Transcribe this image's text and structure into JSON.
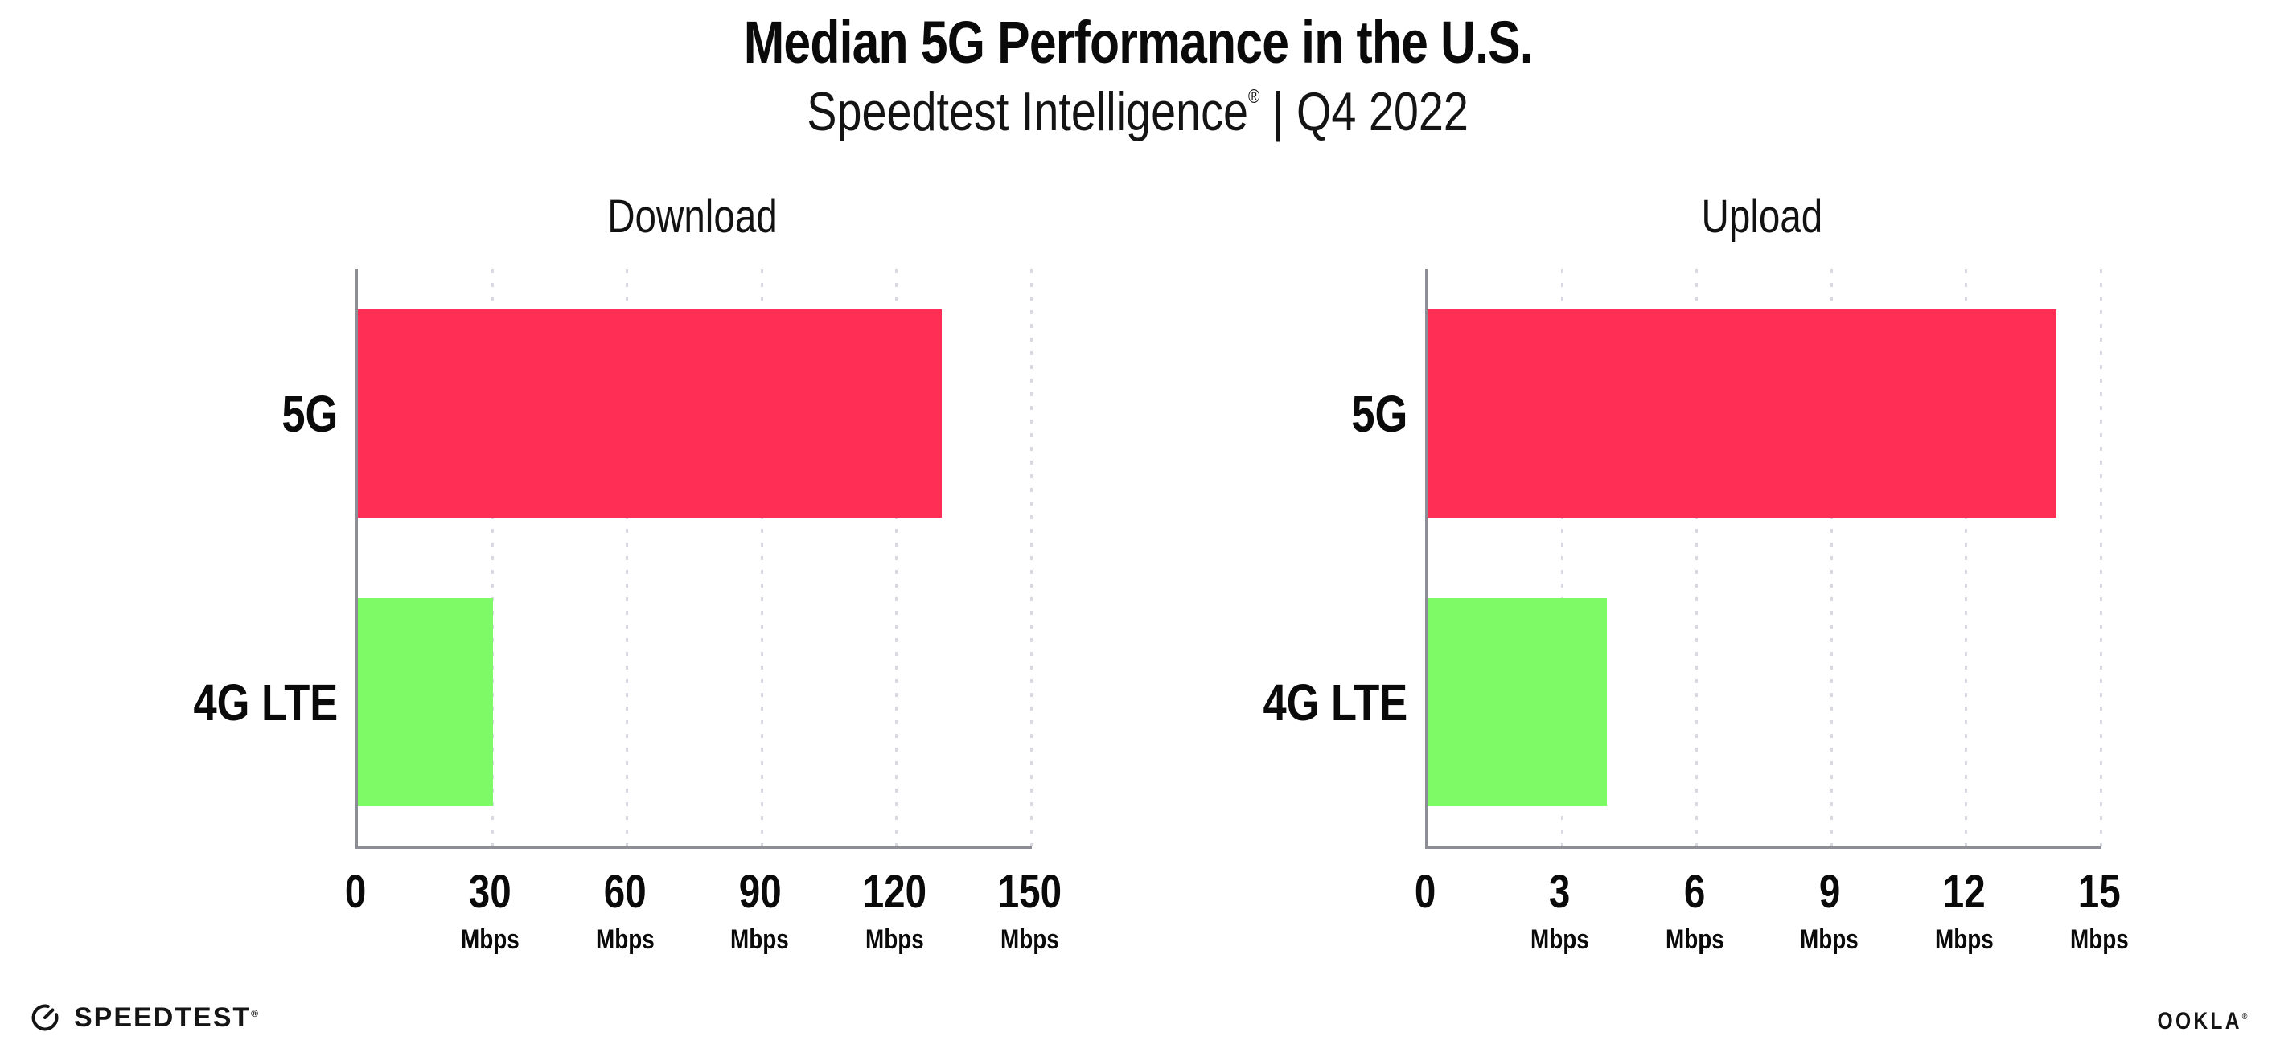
{
  "header": {
    "title": "Median 5G Performance in the U.S.",
    "subtitle_main": "Speedtest Intelligence",
    "subtitle_reg": "®",
    "subtitle_rest": " | Q4 2022"
  },
  "chart_data": [
    {
      "type": "bar",
      "orientation": "horizontal",
      "title": "Download",
      "categories": [
        "5G",
        "4G LTE"
      ],
      "values": [
        130,
        30
      ],
      "unit": "Mbps",
      "xlim": [
        0,
        150
      ],
      "xticks": [
        0,
        30,
        60,
        90,
        120,
        150
      ],
      "bar_colors": [
        "#ff2e55",
        "#7dfa65"
      ],
      "grid": "vertical-dotted",
      "legend": false
    },
    {
      "type": "bar",
      "orientation": "horizontal",
      "title": "Upload",
      "categories": [
        "5G",
        "4G LTE"
      ],
      "values": [
        14,
        4
      ],
      "unit": "Mbps",
      "xlim": [
        0,
        15
      ],
      "xticks": [
        0,
        3,
        6,
        9,
        12,
        15
      ],
      "bar_colors": [
        "#ff2e55",
        "#7dfa65"
      ],
      "grid": "vertical-dotted",
      "legend": false
    }
  ],
  "footer": {
    "speedtest_label": "SPEEDTEST",
    "speedtest_reg": "®",
    "ookla_label": "OOKLA",
    "ookla_reg": "®"
  },
  "colors": {
    "bar_5g": "#ff2e55",
    "bar_4g_lte": "#7dfa65",
    "axis": "#8d8d95",
    "gridline": "#d9d9e3",
    "text": "#111111"
  }
}
